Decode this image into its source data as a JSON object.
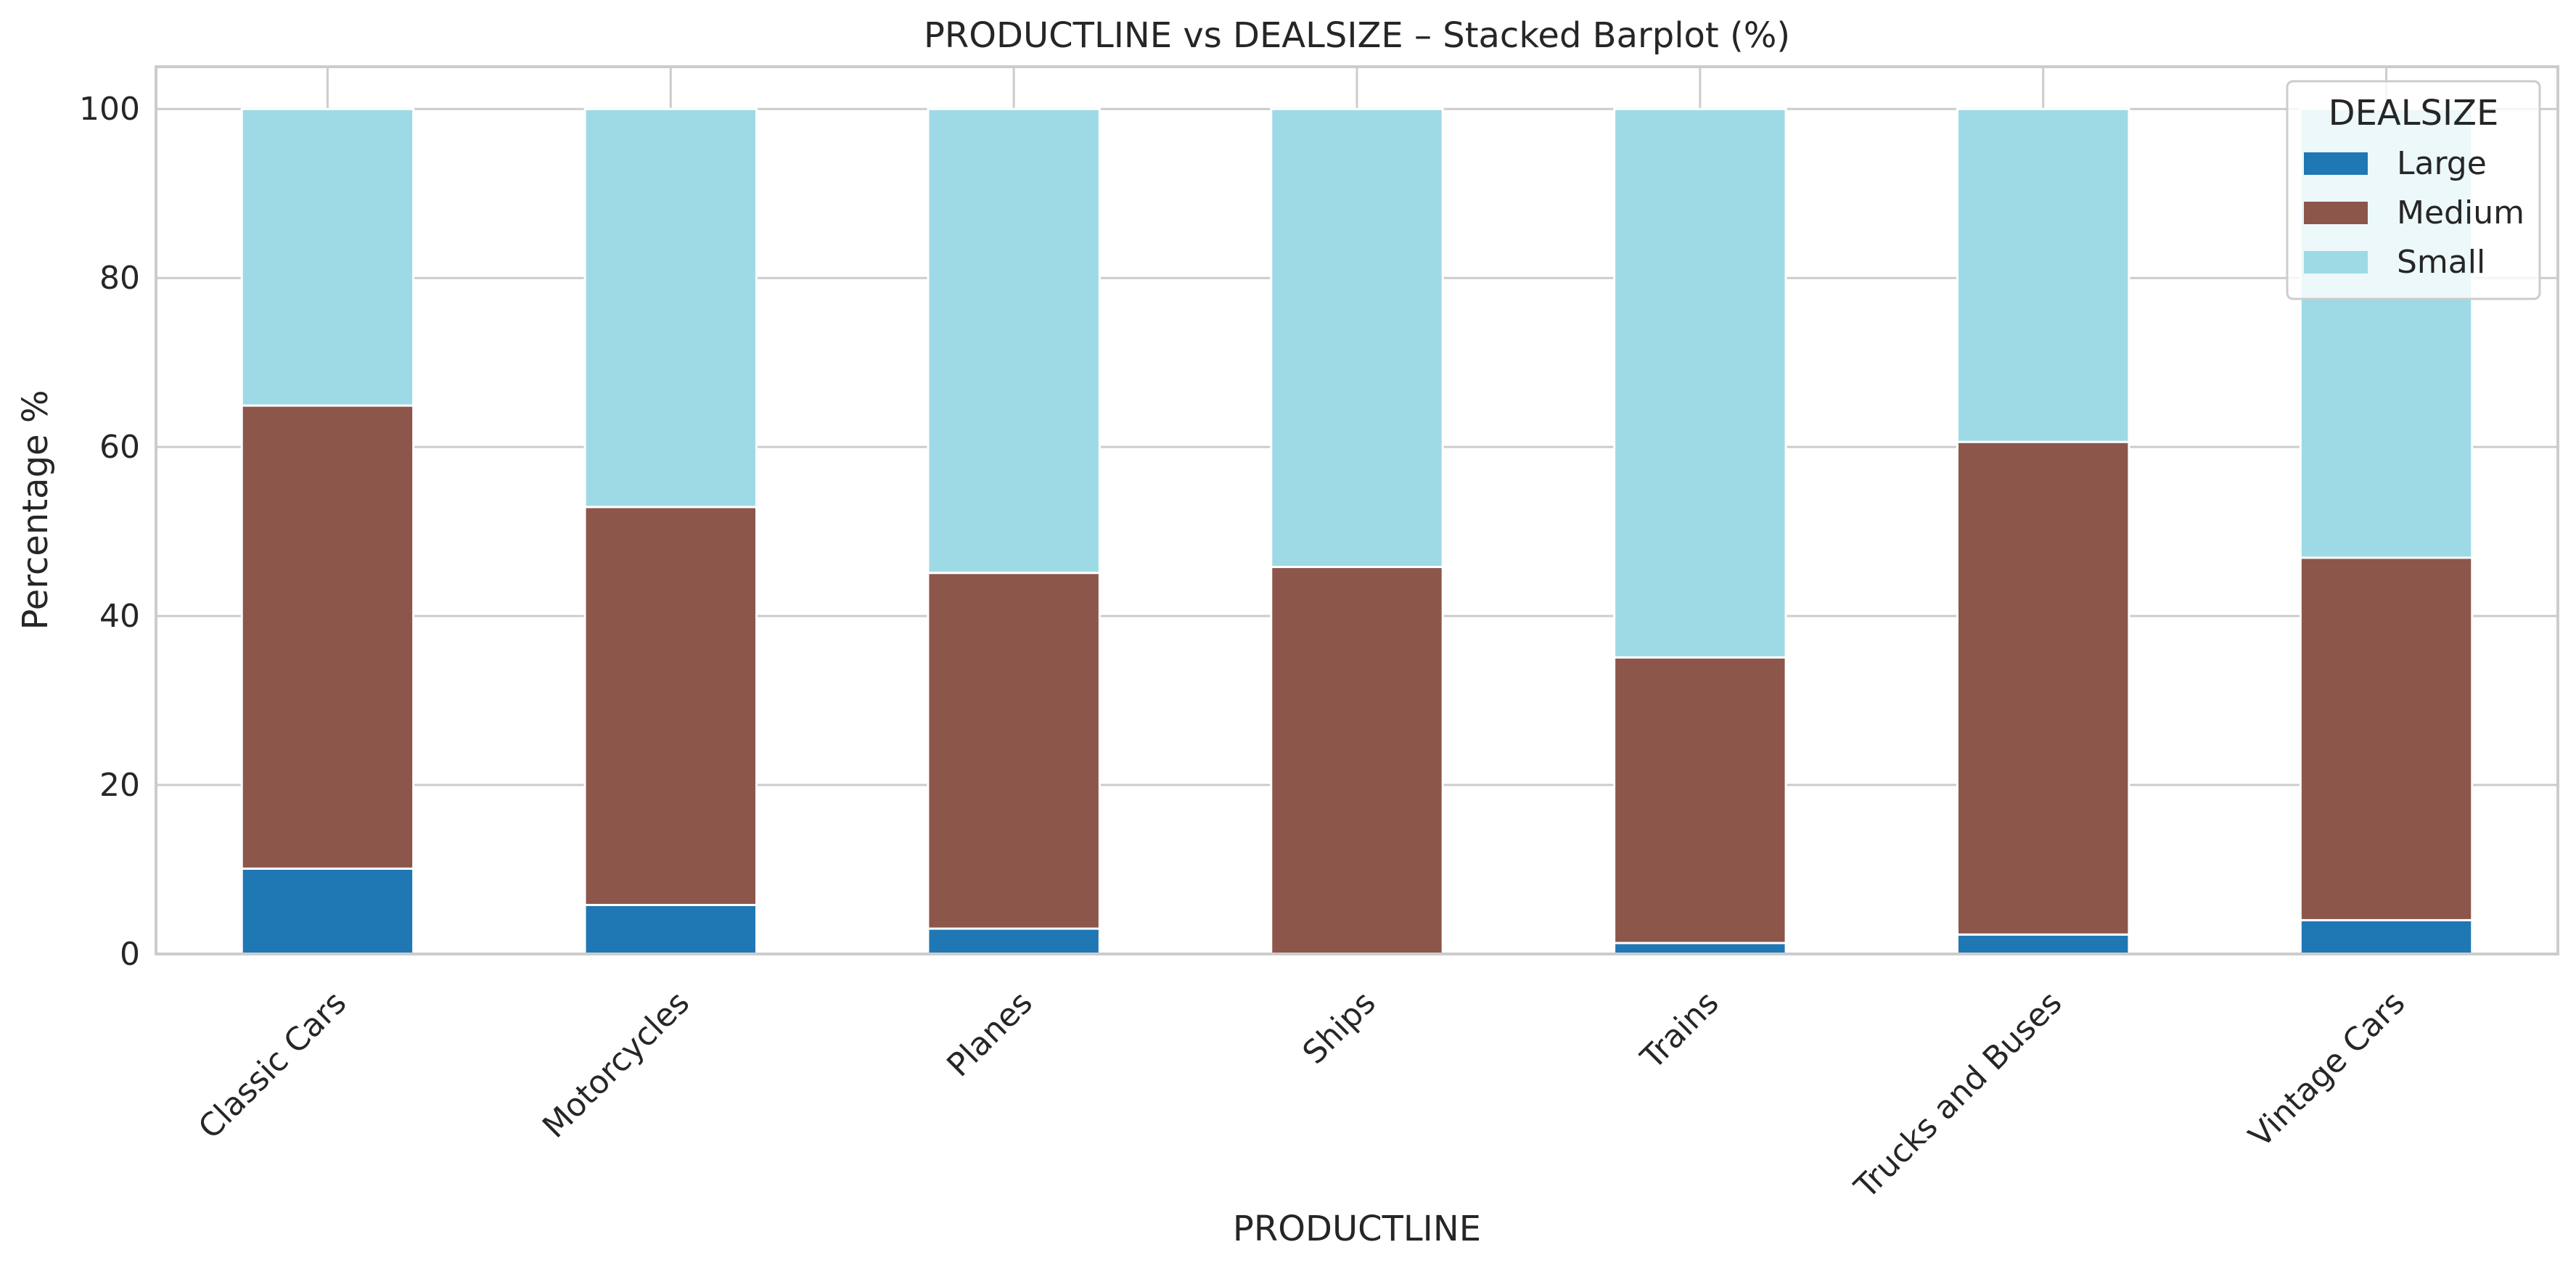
{
  "chart_data": {
    "type": "bar",
    "stacked": true,
    "title": "PRODUCTLINE vs DEALSIZE – Stacked Barplot (%)",
    "xlabel": "PRODUCTLINE",
    "ylabel": "Percentage %",
    "ylim": [
      0,
      105
    ],
    "yticks": [
      0,
      20,
      40,
      60,
      80,
      100
    ],
    "grid": true,
    "legend": {
      "title": "DEALSIZE",
      "position": "top-right"
    },
    "categories": [
      "Classic Cars",
      "Motorcycles",
      "Planes",
      "Ships",
      "Trains",
      "Trucks and Buses",
      "Vintage Cars"
    ],
    "series": [
      {
        "name": "Large",
        "color": "#1f77b4",
        "values": [
          10.1,
          5.8,
          3.0,
          0.0,
          1.3,
          2.3,
          4.0
        ]
      },
      {
        "name": "Medium",
        "color": "#8c564b",
        "values": [
          54.8,
          47.1,
          42.1,
          45.8,
          33.8,
          58.3,
          42.9
        ]
      },
      {
        "name": "Small",
        "color": "#9edae5",
        "values": [
          35.1,
          47.1,
          54.9,
          54.2,
          64.9,
          39.4,
          53.1
        ]
      }
    ]
  }
}
